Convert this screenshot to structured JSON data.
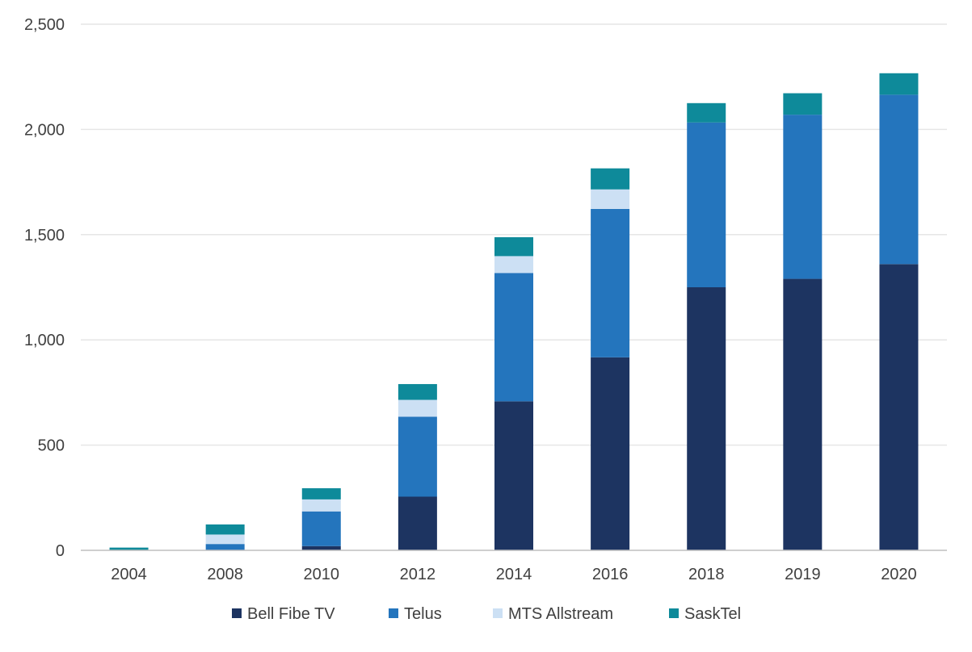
{
  "chart_data": {
    "type": "bar",
    "stacked": true,
    "categories": [
      "2004",
      "2008",
      "2010",
      "2012",
      "2014",
      "2016",
      "2018",
      "2019",
      "2020"
    ],
    "series": [
      {
        "name": "Bell Fibe TV",
        "color": "#1d3461",
        "values": [
          0,
          0,
          20,
          255,
          708,
          917,
          1250,
          1290,
          1360
        ]
      },
      {
        "name": "Telus",
        "color": "#2475bd",
        "values": [
          0,
          30,
          165,
          380,
          610,
          705,
          783,
          780,
          805
        ]
      },
      {
        "name": "MTS Allstream",
        "color": "#cce0f4",
        "values": [
          0,
          45,
          57,
          80,
          80,
          93,
          0,
          0,
          0
        ]
      },
      {
        "name": "SaskTel",
        "color": "#0e8a9a",
        "values": [
          13,
          48,
          53,
          75,
          90,
          100,
          92,
          102,
          102
        ]
      }
    ],
    "y_ticks": [
      "0",
      "500",
      "1,000",
      "1,500",
      "2,000",
      "2,500"
    ],
    "y_tick_values": [
      0,
      500,
      1000,
      1500,
      2000,
      2500
    ],
    "ylim": [
      0,
      2500
    ],
    "grid": true,
    "legend_position": "bottom"
  }
}
